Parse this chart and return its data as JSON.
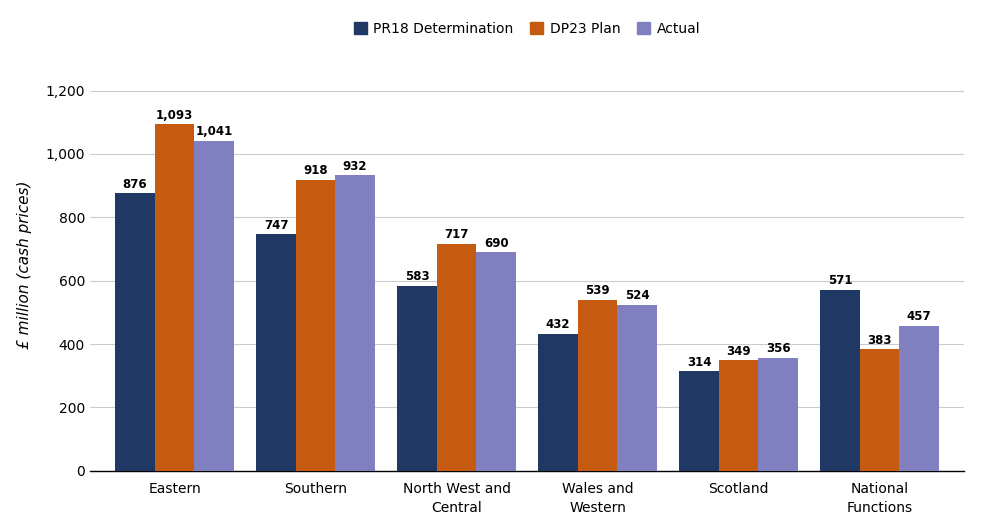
{
  "categories": [
    "Eastern",
    "Southern",
    "North West and\nCentral",
    "Wales and\nWestern",
    "Scotland",
    "National\nFunctions"
  ],
  "pr18": [
    876,
    747,
    583,
    432,
    314,
    571
  ],
  "dp23": [
    1093,
    918,
    717,
    539,
    349,
    383
  ],
  "actual": [
    1041,
    932,
    690,
    524,
    356,
    457
  ],
  "color_pr18": "#1f3864",
  "color_dp23": "#c55a11",
  "color_actual": "#8080c0",
  "ylabel": "£ million (cash prices)",
  "ylim": [
    0,
    1300
  ],
  "yticks": [
    0,
    200,
    400,
    600,
    800,
    1000,
    1200
  ],
  "ytick_labels": [
    "0",
    "200",
    "400",
    "600",
    "800",
    "1,000",
    "1,200"
  ],
  "legend_labels": [
    "PR18 Determination",
    "DP23 Plan",
    "Actual"
  ],
  "bar_width": 0.28,
  "label_fontsize": 8.5,
  "axis_label_fontsize": 11,
  "tick_fontsize": 10,
  "legend_fontsize": 10,
  "figsize": [
    9.81,
    5.32
  ],
  "dpi": 100
}
